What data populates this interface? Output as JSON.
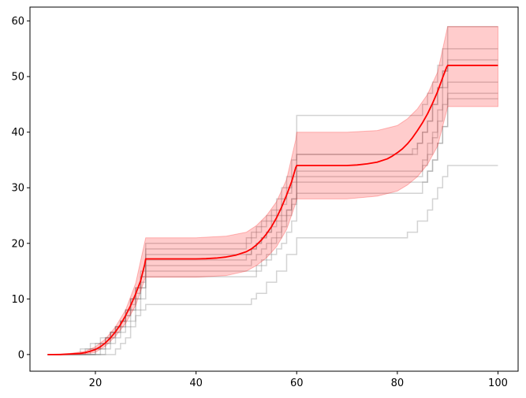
{
  "chart_data": {
    "type": "line",
    "title": "",
    "xlabel": "",
    "ylabel": "",
    "xlim": [
      7,
      104
    ],
    "ylim": [
      -3,
      62.5
    ],
    "xticks": [
      20,
      40,
      60,
      80,
      100
    ],
    "yticks": [
      0,
      10,
      20,
      30,
      40,
      50,
      60
    ],
    "grid": false,
    "legend": "none",
    "colors": {
      "mean": "#ff0000",
      "band": "#ff0000",
      "samples": "#808080"
    },
    "mean": {
      "x": [
        10.5,
        13,
        15,
        17,
        18,
        19,
        20,
        21,
        22,
        23,
        24,
        25,
        26,
        27,
        28,
        29,
        29.8,
        30,
        35,
        40,
        42,
        44,
        46,
        48,
        50,
        51,
        52,
        53,
        54,
        55,
        56,
        57,
        58,
        59,
        59.8,
        60,
        65,
        70,
        72,
        74,
        76,
        78,
        79,
        80,
        81,
        82,
        83,
        84,
        85,
        86,
        87,
        88,
        89,
        89.8,
        90,
        95,
        100
      ],
      "y": [
        0,
        0,
        0.1,
        0.2,
        0.35,
        0.6,
        0.9,
        1.4,
        2.1,
        3.0,
        4.1,
        5.4,
        7.0,
        8.8,
        10.9,
        13.3,
        16.2,
        17.2,
        17.2,
        17.2,
        17.25,
        17.35,
        17.55,
        17.9,
        18.5,
        19.0,
        19.7,
        20.6,
        21.7,
        23.0,
        24.6,
        26.5,
        28.7,
        31.1,
        33.6,
        34.0,
        34.0,
        34.0,
        34.1,
        34.3,
        34.6,
        35.2,
        35.7,
        36.3,
        37.0,
        37.9,
        39.0,
        40.3,
        41.7,
        43.3,
        45.2,
        47.3,
        49.8,
        51.7,
        52.0,
        52.0,
        52.0
      ]
    },
    "band": {
      "x": [
        10.5,
        15,
        18,
        20,
        22,
        24,
        26,
        28,
        29.8,
        30,
        40,
        46,
        50,
        52,
        54,
        56,
        58,
        59.8,
        60,
        70,
        76,
        80,
        82,
        84,
        86,
        88,
        89.8,
        90,
        100
      ],
      "lower": [
        0,
        0,
        0.1,
        0.4,
        1.5,
        3.3,
        5.6,
        8.8,
        13.5,
        13.9,
        13.9,
        14.2,
        15.0,
        16.0,
        17.4,
        19.4,
        22.5,
        27.2,
        28.0,
        28.0,
        28.5,
        29.4,
        30.5,
        32.0,
        34.2,
        37.5,
        43.8,
        44.6,
        44.6
      ],
      "upper": [
        0,
        0.2,
        0.6,
        1.4,
        2.8,
        5.0,
        8.0,
        12.8,
        20.2,
        21.0,
        21.0,
        21.3,
        22.0,
        23.2,
        25.0,
        27.5,
        31.5,
        38.6,
        40.0,
        40.0,
        40.3,
        41.2,
        42.4,
        44.2,
        46.8,
        50.8,
        58.2,
        59.0,
        59.0
      ]
    },
    "samples": [
      {
        "x": [
          10.5,
          19,
          20,
          21,
          22,
          23,
          24,
          25,
          26,
          27,
          28,
          29,
          30,
          49,
          50,
          51,
          52,
          53,
          54,
          55,
          56,
          57,
          58,
          59,
          60,
          84,
          85,
          86,
          87,
          88,
          89,
          90,
          100
        ],
        "y": [
          0,
          0,
          1,
          2,
          3,
          4,
          5,
          6,
          7,
          8,
          10,
          12,
          17,
          17,
          18,
          19,
          20,
          21,
          22,
          23,
          24,
          25,
          26,
          28,
          33,
          33,
          35,
          38,
          40,
          44,
          48,
          52,
          52
        ]
      },
      {
        "x": [
          10.5,
          16,
          17,
          18,
          19,
          20,
          21,
          22,
          23,
          24,
          25,
          26,
          27,
          28,
          29,
          30,
          50,
          51,
          52,
          53,
          54,
          55,
          56,
          57,
          58,
          59,
          60,
          82,
          83,
          84,
          85,
          86,
          87,
          88,
          89,
          90,
          100
        ],
        "y": [
          0,
          0,
          1,
          1,
          2,
          2,
          3,
          3,
          4,
          5,
          6,
          8,
          10,
          12,
          14,
          18,
          18,
          19,
          20,
          21,
          22,
          24,
          25,
          27,
          29,
          31,
          36,
          36,
          37,
          38,
          40,
          42,
          45,
          48,
          51,
          55,
          55
        ]
      },
      {
        "x": [
          10.5,
          19,
          20,
          21,
          22,
          23,
          24,
          25,
          26,
          27,
          28,
          29,
          30,
          50,
          51,
          52,
          53,
          54,
          55,
          56,
          57,
          58,
          59,
          60,
          84,
          85,
          86,
          87,
          88,
          89,
          90,
          100
        ],
        "y": [
          0,
          0,
          1,
          1,
          2,
          3,
          4,
          5,
          7,
          9,
          11,
          13,
          16,
          16,
          17,
          18,
          19,
          20,
          21,
          22,
          24,
          26,
          28,
          32,
          32,
          34,
          36,
          39,
          42,
          45,
          49,
          49
        ]
      },
      {
        "x": [
          10.5,
          20,
          21,
          22,
          23,
          24,
          25,
          26,
          27,
          28,
          29,
          30,
          51,
          52,
          53,
          54,
          55,
          56,
          57,
          58,
          59,
          60,
          85,
          86,
          87,
          88,
          89,
          90,
          100
        ],
        "y": [
          0,
          0,
          1,
          2,
          3,
          4,
          5,
          6,
          8,
          10,
          12,
          15,
          15,
          16,
          17,
          18,
          20,
          21,
          23,
          25,
          27,
          31,
          31,
          33,
          35,
          38,
          41,
          47,
          47
        ]
      },
      {
        "x": [
          10.5,
          21,
          22,
          23,
          24,
          25,
          26,
          27,
          28,
          29,
          30,
          51,
          52,
          53,
          54,
          55,
          56,
          57,
          58,
          59,
          60,
          84,
          85,
          86,
          87,
          88,
          89,
          90,
          100
        ],
        "y": [
          0,
          0,
          1,
          2,
          3,
          4,
          5,
          6,
          8,
          10,
          14,
          14,
          15,
          16,
          17,
          18,
          19,
          20,
          22,
          24,
          29,
          29,
          31,
          33,
          35,
          38,
          41,
          46,
          46
        ]
      },
      {
        "x": [
          10.5,
          18,
          19,
          20,
          21,
          22,
          23,
          24,
          25,
          26,
          27,
          28,
          29,
          30,
          49,
          50,
          51,
          52,
          53,
          54,
          55,
          56,
          57,
          58,
          59,
          60,
          84,
          85,
          86,
          87,
          88,
          89,
          90,
          100
        ],
        "y": [
          0,
          0,
          1,
          1,
          2,
          3,
          4,
          5,
          6,
          8,
          10,
          12,
          15,
          20,
          20,
          21,
          22,
          23,
          24,
          25,
          26,
          28,
          30,
          32,
          35,
          43,
          43,
          45,
          47,
          49,
          52,
          55,
          59,
          59
        ]
      },
      {
        "x": [
          10.5,
          23,
          24,
          25,
          26,
          27,
          28,
          29,
          30,
          50,
          51,
          52,
          54,
          56,
          58,
          60,
          80,
          82,
          84,
          86,
          87,
          88,
          89,
          90,
          100
        ],
        "y": [
          0,
          0,
          1,
          2,
          3,
          5,
          7,
          8,
          9,
          9,
          10,
          11,
          13,
          15,
          18,
          21,
          21,
          22,
          24,
          26,
          28,
          30,
          32,
          34,
          34
        ]
      },
      {
        "x": [
          10.5,
          17,
          18,
          19,
          20,
          21,
          22,
          23,
          24,
          25,
          26,
          27,
          28,
          29,
          30,
          49,
          50,
          51,
          52,
          53,
          54,
          55,
          56,
          57,
          58,
          59,
          60,
          83,
          84,
          85,
          86,
          87,
          88,
          89,
          90,
          100
        ],
        "y": [
          0,
          0,
          1,
          1,
          2,
          2,
          3,
          4,
          5,
          6,
          8,
          10,
          12,
          14,
          19,
          19,
          20,
          21,
          22,
          23,
          24,
          25,
          26,
          28,
          30,
          32,
          36,
          36,
          38,
          40,
          42,
          45,
          48,
          51,
          53,
          53
        ]
      }
    ]
  }
}
